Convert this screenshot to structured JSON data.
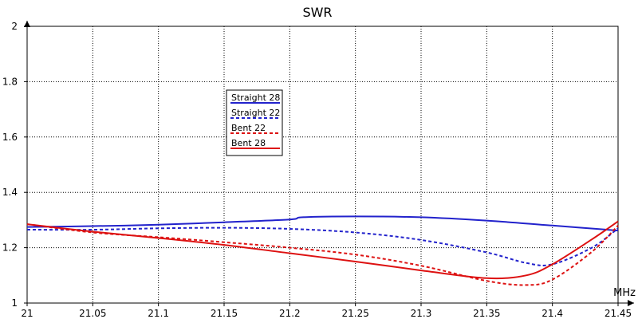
{
  "chart_data": {
    "type": "line",
    "title": "SWR",
    "xlabel": "MHz",
    "ylabel": "",
    "xlim": [
      21,
      21.45
    ],
    "ylim": [
      1,
      2
    ],
    "xticks": [
      "21",
      "21.05",
      "21.1",
      "21.15",
      "21.2",
      "21.25",
      "21.3",
      "21.35",
      "21.4",
      "21.45"
    ],
    "yticks": [
      "1",
      "1.2",
      "1.4",
      "1.6",
      "1.8",
      "2"
    ],
    "grid": true,
    "legend_position": "upper-left-center",
    "series": [
      {
        "name": "Straight 28",
        "color": "#2222cc",
        "dash": "solid",
        "points": [
          [
            21,
            1.275
          ],
          [
            21.05,
            1.278
          ],
          [
            21.1,
            1.283
          ],
          [
            21.15,
            1.292
          ],
          [
            21.2,
            1.302
          ],
          [
            21.21,
            1.31
          ],
          [
            21.25,
            1.313
          ],
          [
            21.3,
            1.31
          ],
          [
            21.35,
            1.298
          ],
          [
            21.4,
            1.28
          ],
          [
            21.45,
            1.262
          ]
        ]
      },
      {
        "name": "Straight 22",
        "color": "#2222cc",
        "dash": "dashed",
        "points": [
          [
            21,
            1.265
          ],
          [
            21.05,
            1.265
          ],
          [
            21.1,
            1.27
          ],
          [
            21.15,
            1.272
          ],
          [
            21.2,
            1.268
          ],
          [
            21.25,
            1.255
          ],
          [
            21.3,
            1.228
          ],
          [
            21.35,
            1.183
          ],
          [
            21.38,
            1.145
          ],
          [
            21.4,
            1.14
          ],
          [
            21.43,
            1.2
          ],
          [
            21.45,
            1.27
          ]
        ]
      },
      {
        "name": "Bent 22",
        "color": "#dd1111",
        "dash": "dashed",
        "points": [
          [
            21,
            1.285
          ],
          [
            21.05,
            1.255
          ],
          [
            21.1,
            1.238
          ],
          [
            21.15,
            1.22
          ],
          [
            21.2,
            1.2
          ],
          [
            21.25,
            1.175
          ],
          [
            21.3,
            1.135
          ],
          [
            21.35,
            1.08
          ],
          [
            21.38,
            1.065
          ],
          [
            21.4,
            1.085
          ],
          [
            21.43,
            1.185
          ],
          [
            21.45,
            1.28
          ]
        ]
      },
      {
        "name": "Bent 28",
        "color": "#dd1111",
        "dash": "solid",
        "points": [
          [
            21,
            1.285
          ],
          [
            21.05,
            1.258
          ],
          [
            21.1,
            1.235
          ],
          [
            21.15,
            1.21
          ],
          [
            21.2,
            1.18
          ],
          [
            21.25,
            1.15
          ],
          [
            21.3,
            1.118
          ],
          [
            21.35,
            1.09
          ],
          [
            21.38,
            1.1
          ],
          [
            21.4,
            1.14
          ],
          [
            21.43,
            1.23
          ],
          [
            21.45,
            1.295
          ]
        ]
      }
    ]
  }
}
